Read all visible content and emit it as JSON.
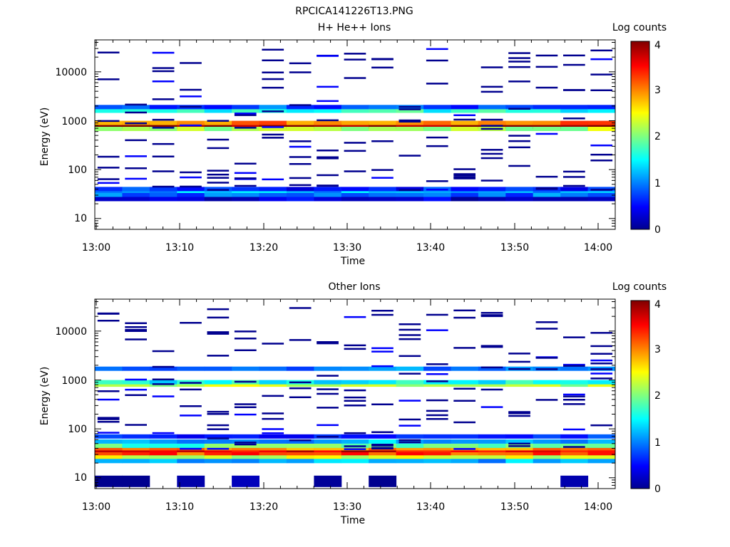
{
  "title": "RPCICA141226T13.PNG",
  "colorbar_label": "Log counts",
  "colorbar_ticks": [
    "0",
    "1",
    "2",
    "3",
    "4"
  ],
  "colormap": [
    "#00008f",
    "#0000ff",
    "#00ffff",
    "#ffff00",
    "#ff0000",
    "#800000"
  ],
  "y_ticks": [
    "10",
    "100",
    "1000",
    "10000"
  ],
  "x_ticks": [
    "13:00",
    "13:10",
    "13:20",
    "13:30",
    "13:40",
    "13:50",
    "14:00"
  ],
  "chart_data": [
    {
      "type": "heatmap",
      "title": "H+ He++ Ions",
      "xlabel": "Time",
      "ylabel": "Energy (eV)",
      "xlim": [
        "13:00",
        "14:02"
      ],
      "ylim": [
        6,
        45000
      ],
      "yscale": "log",
      "colorbar": {
        "label": "Log counts",
        "range": [
          0,
          4
        ]
      },
      "time_bins": [
        "13:00",
        "13:03",
        "13:06",
        "13:10",
        "13:13",
        "13:16",
        "13:20",
        "13:23",
        "13:26",
        "13:30",
        "13:33",
        "13:36",
        "13:40",
        "13:43",
        "13:46",
        "13:50",
        "13:53",
        "13:56",
        "14:00"
      ],
      "bands": [
        {
          "energy": 800,
          "level": 3.6
        },
        {
          "energy": 750,
          "level": 4.0
        },
        {
          "energy": 900,
          "level": 3.0
        },
        {
          "energy": 680,
          "level": 2.2
        },
        {
          "energy": 1600,
          "level": 1.6
        },
        {
          "energy": 1900,
          "level": 0.8
        },
        {
          "energy": 35,
          "level": 1.2
        },
        {
          "energy": 30,
          "level": 0.9
        },
        {
          "energy": 40,
          "level": 0.6
        },
        {
          "energy": 25,
          "level": 0.3
        }
      ]
    },
    {
      "type": "heatmap",
      "title": "Other Ions",
      "xlabel": "Time",
      "ylabel": "Energy (eV)",
      "xlim": [
        "13:00",
        "14:02"
      ],
      "ylim": [
        6,
        45000
      ],
      "yscale": "log",
      "colorbar": {
        "label": "Log counts",
        "range": [
          0,
          4
        ]
      },
      "time_bins": [
        "13:00",
        "13:03",
        "13:06",
        "13:10",
        "13:13",
        "13:16",
        "13:20",
        "13:23",
        "13:26",
        "13:30",
        "13:33",
        "13:36",
        "13:40",
        "13:43",
        "13:46",
        "13:50",
        "13:53",
        "13:56",
        "14:00"
      ],
      "bands": [
        {
          "energy": 35,
          "level": 3.6
        },
        {
          "energy": 30,
          "level": 3.2
        },
        {
          "energy": 40,
          "level": 3.0
        },
        {
          "energy": 26,
          "level": 2.3
        },
        {
          "energy": 45,
          "level": 1.8
        },
        {
          "energy": 22,
          "level": 1.2
        },
        {
          "energy": 55,
          "level": 1.2
        },
        {
          "energy": 70,
          "level": 0.7
        },
        {
          "energy": 800,
          "level": 2.2
        },
        {
          "energy": 900,
          "level": 1.5
        },
        {
          "energy": 1700,
          "level": 1.0
        },
        {
          "energy": 10,
          "level": 0.0
        }
      ]
    }
  ]
}
